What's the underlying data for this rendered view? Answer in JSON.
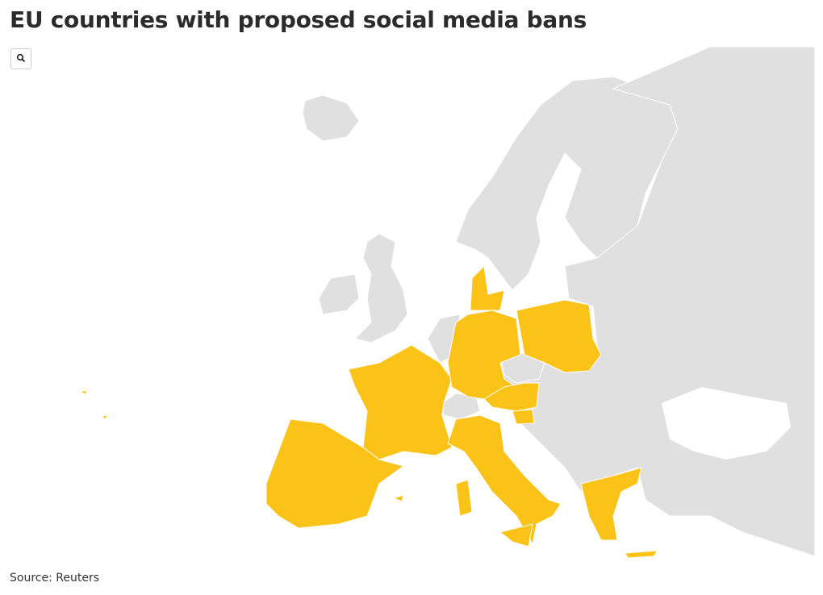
{
  "header": {
    "title": "EU countries with proposed social media bans"
  },
  "footer": {
    "source": "Source: Reuters"
  }
}
